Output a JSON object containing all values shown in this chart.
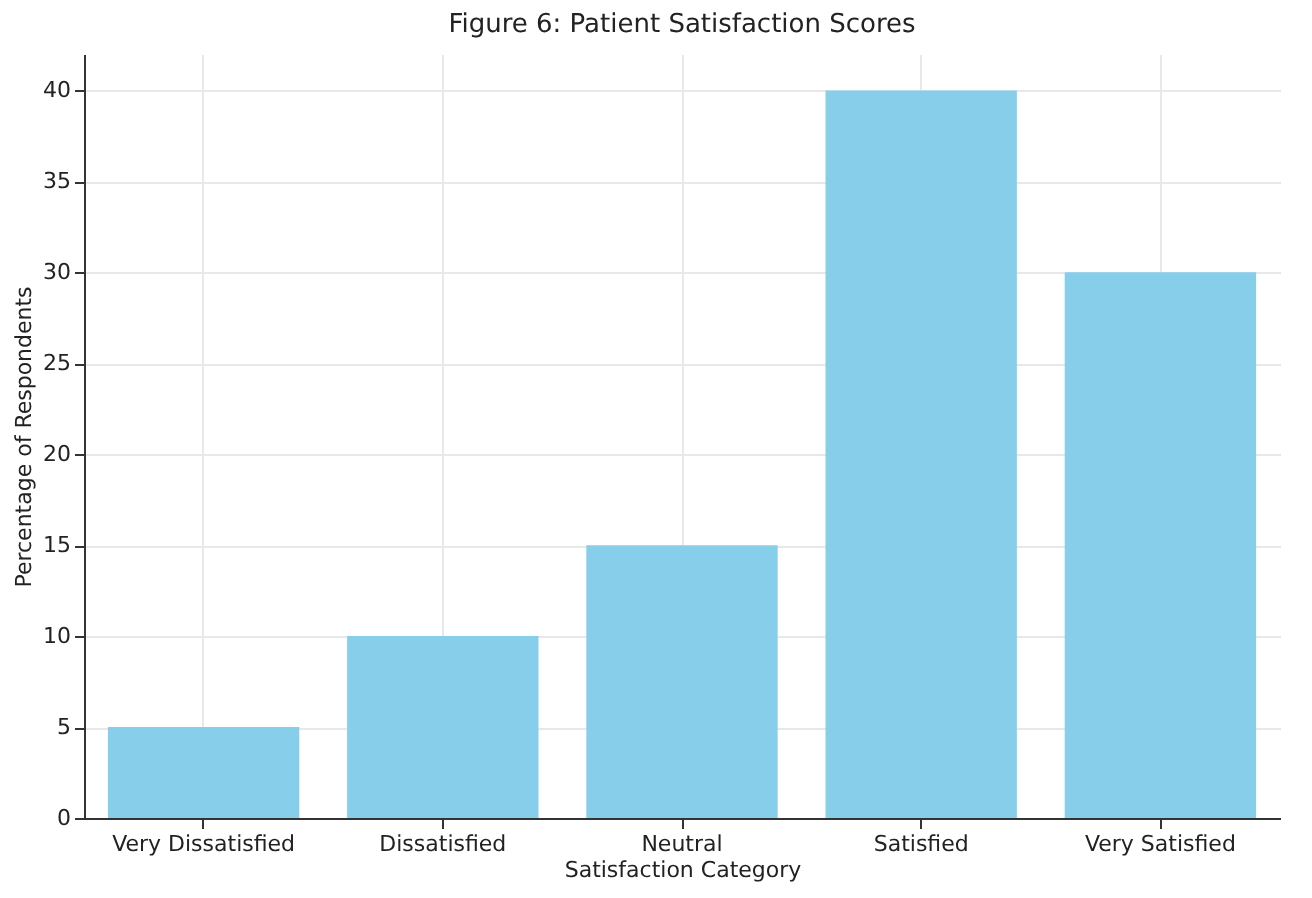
{
  "chart_data": {
    "type": "bar",
    "title": "Figure 6: Patient Satisfaction Scores",
    "xlabel": "Satisfaction Category",
    "ylabel": "Percentage of Respondents",
    "categories": [
      "Very Dissatisfied",
      "Dissatisfied",
      "Neutral",
      "Satisfied",
      "Very Satisfied"
    ],
    "values": [
      5,
      10,
      15,
      40,
      30
    ],
    "color": "#87ceeb",
    "ylim": [
      0,
      42
    ],
    "yticks": [
      0,
      5,
      10,
      15,
      20,
      25,
      30,
      35,
      40
    ],
    "grid": true
  }
}
